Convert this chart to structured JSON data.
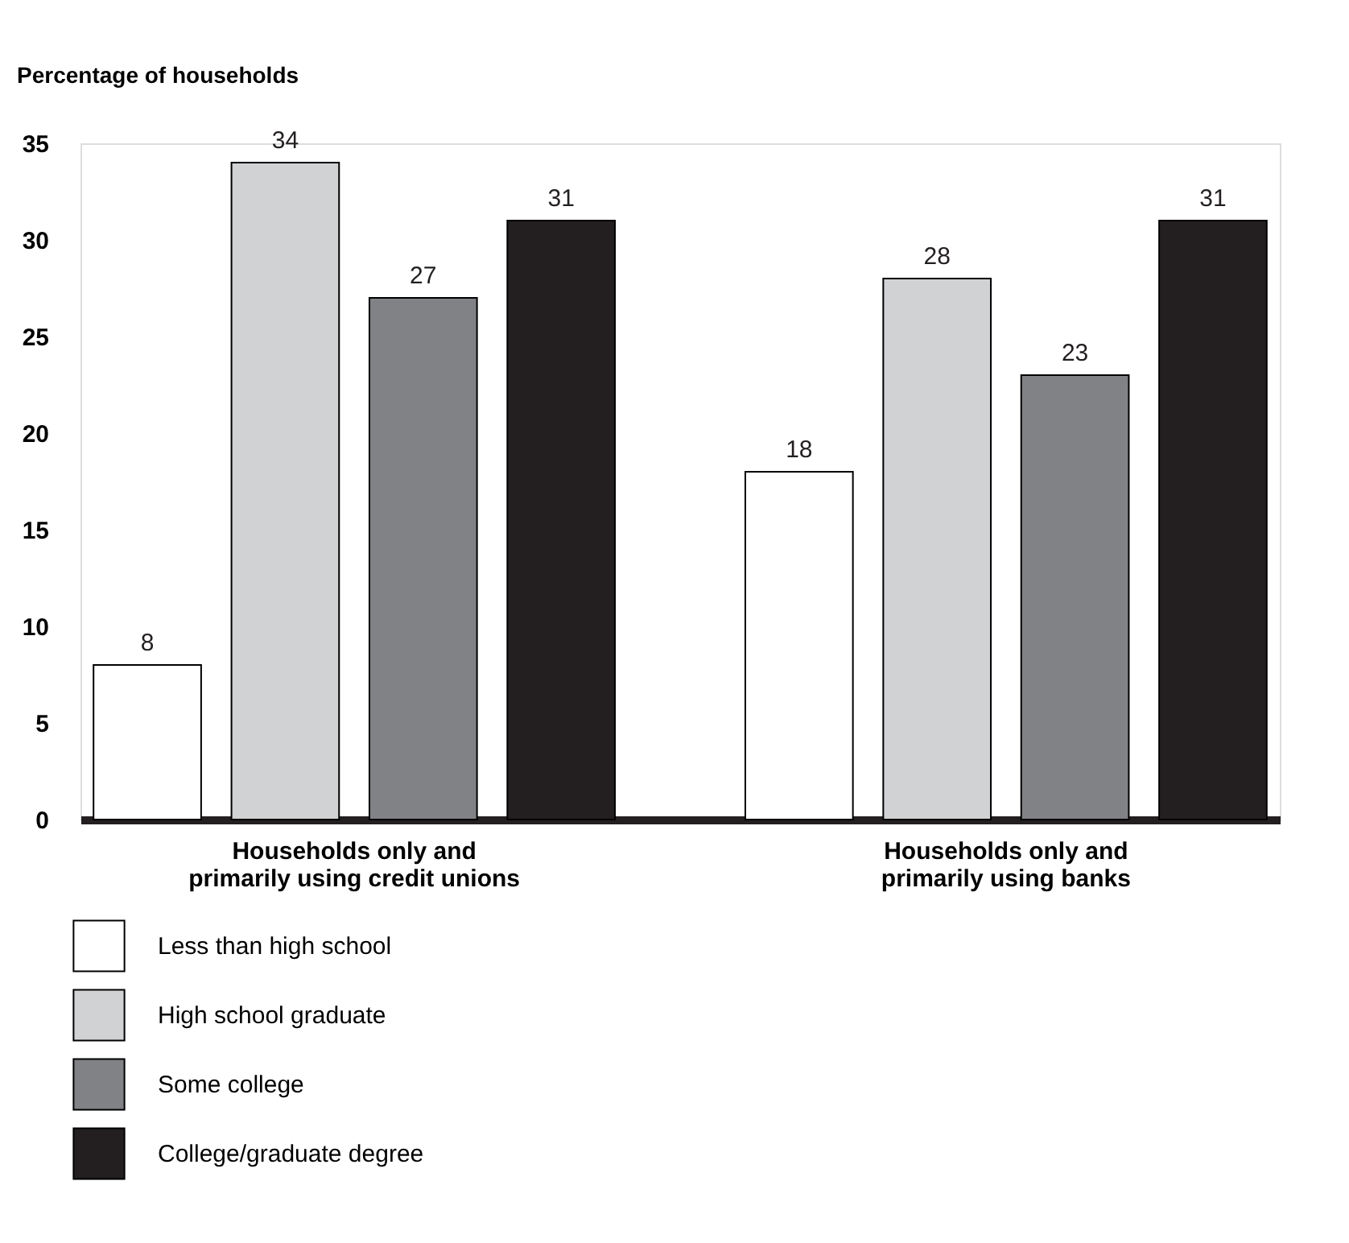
{
  "chart_data": {
    "type": "bar",
    "ylabel": "Percentage of households",
    "categories": [
      "Households only and primarily using credit unions",
      "Households only and primarily using banks"
    ],
    "series": [
      {
        "name": "Less than high school",
        "color": "#ffffff",
        "values": [
          8,
          18
        ]
      },
      {
        "name": "High school graduate",
        "color": "#d1d2d4",
        "values": [
          34,
          28
        ]
      },
      {
        "name": "Some college",
        "color": "#808285",
        "values": [
          27,
          23
        ]
      },
      {
        "name": "College/graduate degree",
        "color": "#231f20",
        "values": [
          31,
          31
        ]
      }
    ],
    "ylim": [
      0,
      35
    ],
    "yticks": [
      0,
      5,
      10,
      15,
      20,
      25,
      30,
      35
    ],
    "grid": false,
    "legend": "bottom left",
    "data_labels": true
  }
}
